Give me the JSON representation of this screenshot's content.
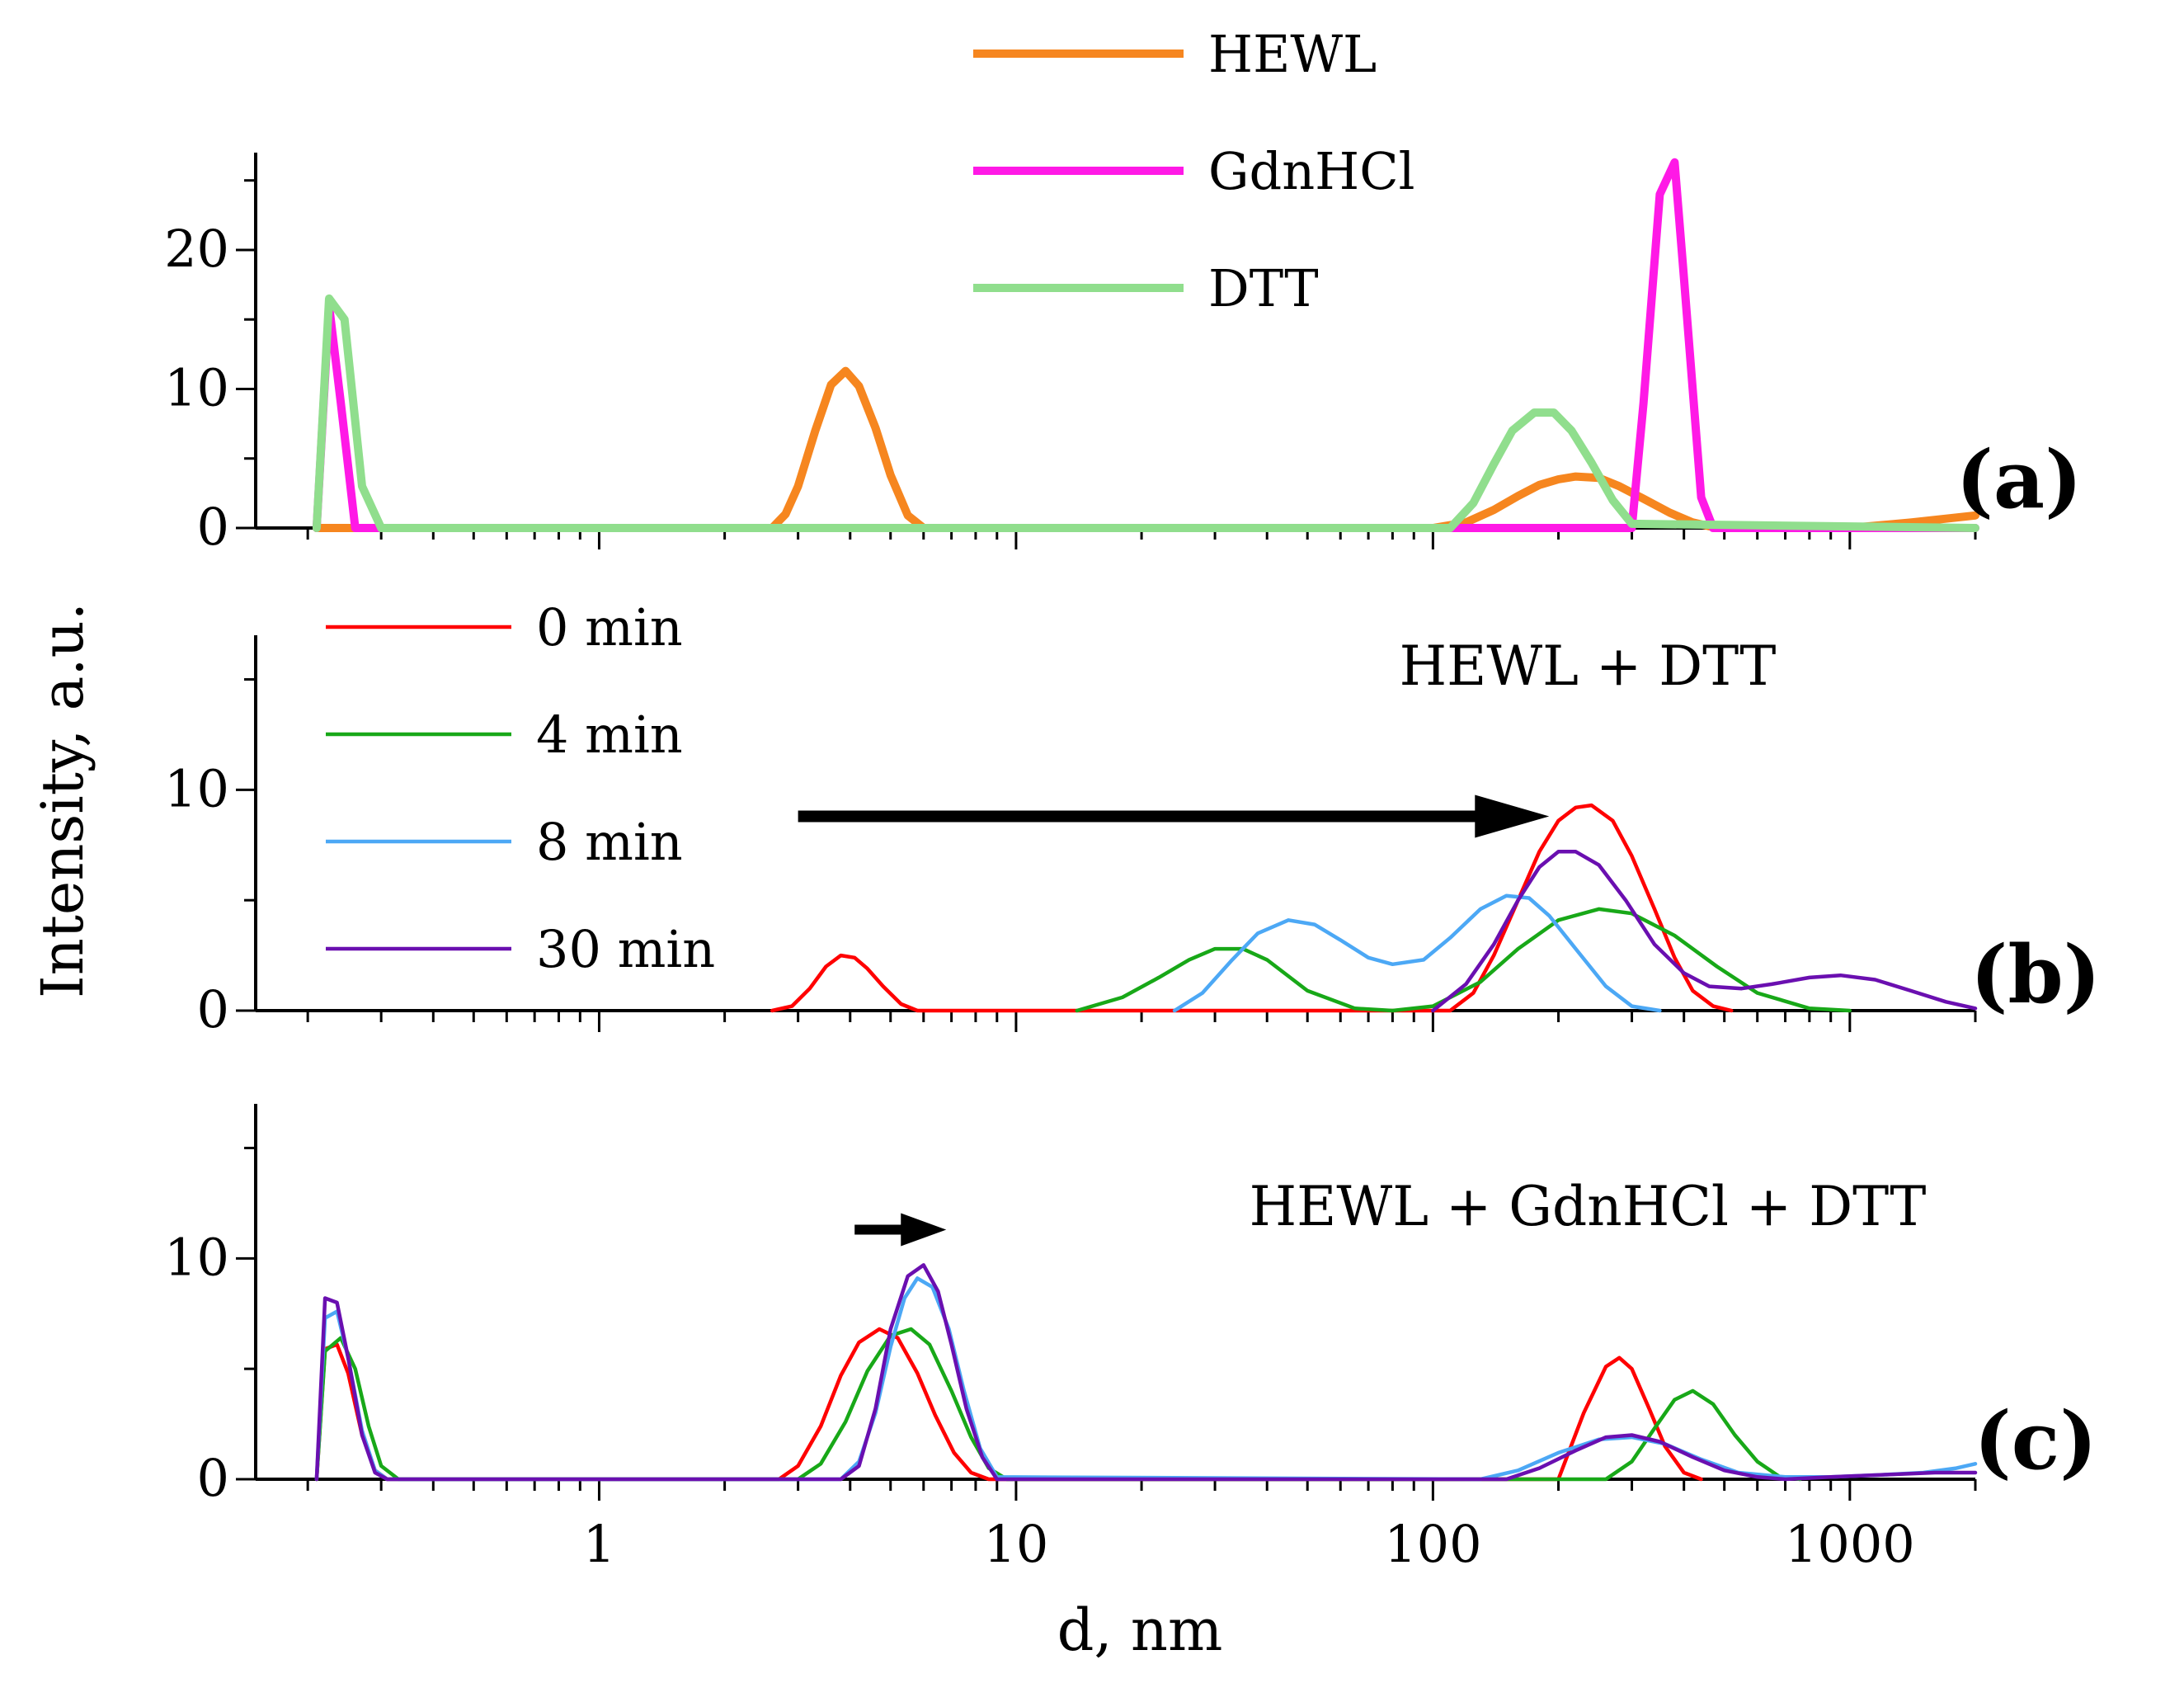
{
  "figure": {
    "xlabel": "d, nm",
    "ylabel": "Intensity, a.u.",
    "x_ticks": [
      {
        "value": 1,
        "label": "1"
      },
      {
        "value": 10,
        "label": "10"
      },
      {
        "value": 100,
        "label": "100"
      },
      {
        "value": 1000,
        "label": "1000"
      }
    ]
  },
  "chart_data": [
    {
      "panel": "a",
      "type": "line",
      "panel_label": "(a)",
      "annotation": "",
      "xscale": "log",
      "xlim": [
        0.15,
        2000
      ],
      "ylim": [
        0,
        27
      ],
      "y_ticks": [
        {
          "value": 0,
          "label": "0"
        },
        {
          "value": 10,
          "label": "10"
        },
        {
          "value": 20,
          "label": "20"
        }
      ],
      "line_width": "thick",
      "legend": {
        "placement": "top-center",
        "entries": [
          "HEWL",
          "GdnHCl",
          "DTT"
        ]
      },
      "arrow": null,
      "series": [
        {
          "name": "HEWL",
          "color": "#f6861f",
          "x": [
            0.21,
            0.26,
            2.6,
            2.8,
            3.0,
            3.3,
            3.6,
            3.9,
            4.2,
            4.6,
            5.0,
            5.5,
            6.0,
            100,
            120,
            140,
            160,
            180,
            200,
            220,
            250,
            280,
            320,
            370,
            420,
            480,
            600,
            1000,
            1400,
            2000
          ],
          "y": [
            0,
            0,
            0,
            1.0,
            3.0,
            7.0,
            10.3,
            11.3,
            10.2,
            7.2,
            3.8,
            0.9,
            0,
            0,
            0.4,
            1.3,
            2.3,
            3.1,
            3.5,
            3.7,
            3.6,
            3.0,
            2.1,
            1.1,
            0.4,
            0,
            0,
            0,
            0.4,
            0.9
          ]
        },
        {
          "name": "GdnHCl",
          "color": "#ff19e6",
          "x": [
            0.21,
            0.225,
            0.24,
            0.26,
            300,
            320,
            350,
            380,
            400,
            440,
            470,
            2000
          ],
          "y": [
            0,
            16.0,
            9.0,
            0,
            0,
            9.0,
            24.0,
            26.3,
            18.0,
            2.2,
            0,
            0
          ]
        },
        {
          "name": "DTT",
          "color": "#90de8d",
          "x": [
            0.21,
            0.225,
            0.245,
            0.27,
            0.3,
            110,
            125,
            140,
            155,
            175,
            195,
            215,
            240,
            270,
            300,
            2000
          ],
          "y": [
            0,
            16.5,
            15.0,
            3.0,
            0,
            0,
            1.8,
            4.6,
            7.0,
            8.3,
            8.3,
            7.0,
            4.7,
            2.0,
            0.3,
            0
          ]
        }
      ]
    },
    {
      "panel": "b",
      "type": "line",
      "panel_label": "(b)",
      "annotation": "HEWL + DTT",
      "xscale": "log",
      "xlim": [
        0.15,
        2000
      ],
      "ylim": [
        0,
        17
      ],
      "y_ticks": [
        {
          "value": 0,
          "label": "0"
        },
        {
          "value": 10,
          "label": "10"
        }
      ],
      "line_width": "thin",
      "legend": {
        "placement": "top-left",
        "entries": [
          "0 min",
          "4 min",
          "8 min",
          "30 min"
        ]
      },
      "arrow": {
        "from": 3.0,
        "to": 190,
        "y": 8.8,
        "size": "large"
      },
      "series": [
        {
          "name": "0 min",
          "color": "#ff0000",
          "x": [
            2.6,
            2.9,
            3.2,
            3.5,
            3.8,
            4.1,
            4.4,
            4.8,
            5.3,
            5.8,
            110,
            125,
            140,
            160,
            180,
            200,
            220,
            240,
            270,
            300,
            340,
            380,
            420,
            470,
            520
          ],
          "y": [
            0,
            0.2,
            1.0,
            2.0,
            2.5,
            2.4,
            1.9,
            1.1,
            0.3,
            0,
            0,
            0.8,
            2.5,
            5.0,
            7.2,
            8.6,
            9.2,
            9.3,
            8.6,
            7.0,
            4.6,
            2.4,
            0.9,
            0.2,
            0
          ]
        },
        {
          "name": "4 min",
          "color": "#18a818",
          "x": [
            14,
            18,
            22,
            26,
            30,
            35,
            40,
            50,
            65,
            80,
            100,
            130,
            160,
            200,
            250,
            300,
            380,
            480,
            600,
            800,
            1000
          ],
          "y": [
            0,
            0.6,
            1.5,
            2.3,
            2.8,
            2.8,
            2.3,
            0.9,
            0.1,
            0,
            0.2,
            1.3,
            2.8,
            4.1,
            4.6,
            4.4,
            3.4,
            2.0,
            0.8,
            0.1,
            0
          ]
        },
        {
          "name": "8 min",
          "color": "#4ca8f5",
          "x": [
            24,
            28,
            33,
            38,
            45,
            52,
            60,
            70,
            80,
            95,
            110,
            130,
            150,
            170,
            190,
            220,
            260,
            300,
            350
          ],
          "y": [
            0,
            0.8,
            2.3,
            3.5,
            4.1,
            3.9,
            3.2,
            2.4,
            2.1,
            2.3,
            3.3,
            4.6,
            5.2,
            5.1,
            4.3,
            2.8,
            1.1,
            0.2,
            0
          ]
        },
        {
          "name": "30 min",
          "color": "#6a0fb0",
          "x": [
            100,
            120,
            140,
            160,
            180,
            200,
            220,
            250,
            290,
            340,
            400,
            460,
            550,
            650,
            800,
            950,
            1150,
            1400,
            1700,
            2000
          ],
          "y": [
            0,
            1.2,
            3.0,
            5.0,
            6.5,
            7.2,
            7.2,
            6.6,
            5.0,
            3.0,
            1.7,
            1.1,
            1.0,
            1.2,
            1.5,
            1.6,
            1.4,
            0.9,
            0.4,
            0.1
          ]
        }
      ]
    },
    {
      "panel": "c",
      "type": "line",
      "panel_label": "(c)",
      "annotation": "HEWL + GdnHCl + DTT",
      "xscale": "log",
      "xlim": [
        0.15,
        2000
      ],
      "ylim": [
        0,
        17
      ],
      "y_ticks": [
        {
          "value": 0,
          "label": "0"
        },
        {
          "value": 10,
          "label": "10"
        }
      ],
      "line_width": "thin",
      "legend": null,
      "arrow": {
        "from": 4.1,
        "to": 6.8,
        "y": 11.3,
        "size": "small"
      },
      "series": [
        {
          "name": "0 min",
          "color": "#ff0000",
          "x": [
            0.21,
            0.22,
            0.235,
            0.25,
            0.27,
            0.29,
            0.31,
            2.7,
            3.0,
            3.4,
            3.8,
            4.2,
            4.7,
            5.2,
            5.8,
            6.4,
            7.1,
            7.8,
            8.6,
            200,
            230,
            260,
            280,
            300,
            330,
            360,
            400,
            440
          ],
          "y": [
            0,
            5.9,
            6.1,
            4.8,
            2.0,
            0.4,
            0,
            0,
            0.6,
            2.4,
            4.7,
            6.2,
            6.8,
            6.4,
            4.8,
            2.9,
            1.2,
            0.3,
            0,
            0,
            3.0,
            5.1,
            5.5,
            5.0,
            3.2,
            1.5,
            0.3,
            0
          ]
        },
        {
          "name": "4 min",
          "color": "#18a818",
          "x": [
            0.21,
            0.22,
            0.24,
            0.26,
            0.28,
            0.3,
            0.33,
            3.0,
            3.4,
            3.9,
            4.4,
            5.0,
            5.6,
            6.2,
            7.0,
            7.8,
            8.6,
            9.5,
            260,
            300,
            340,
            380,
            420,
            470,
            530,
            600,
            680,
            760
          ],
          "y": [
            0,
            5.8,
            6.4,
            5.0,
            2.4,
            0.6,
            0,
            0,
            0.7,
            2.6,
            4.9,
            6.5,
            6.8,
            6.1,
            4.0,
            1.9,
            0.5,
            0,
            0,
            0.8,
            2.3,
            3.6,
            4.0,
            3.4,
            2.0,
            0.8,
            0.1,
            0
          ]
        },
        {
          "name": "8 min",
          "color": "#4ca8f5",
          "x": [
            0.21,
            0.22,
            0.235,
            0.25,
            0.27,
            0.29,
            0.31,
            3.8,
            4.2,
            4.6,
            5.0,
            5.4,
            5.8,
            6.3,
            6.9,
            7.5,
            8.2,
            9.0,
            130,
            160,
            200,
            250,
            300,
            360,
            440,
            540,
            700,
            900,
            1200,
            1500,
            1800,
            2000
          ],
          "y": [
            0,
            7.3,
            7.6,
            5.5,
            2.2,
            0.4,
            0,
            0,
            0.8,
            3.0,
            6.0,
            8.2,
            9.1,
            8.7,
            6.8,
            4.0,
            1.4,
            0.1,
            0,
            0.4,
            1.2,
            1.8,
            1.9,
            1.6,
            0.9,
            0.3,
            0.1,
            0.1,
            0.2,
            0.3,
            0.5,
            0.7
          ]
        },
        {
          "name": "30 min",
          "color": "#6a0fb0",
          "x": [
            0.21,
            0.22,
            0.235,
            0.25,
            0.27,
            0.29,
            0.31,
            3.8,
            4.2,
            4.6,
            5.0,
            5.5,
            6.0,
            6.5,
            7.0,
            7.6,
            8.3,
            9.0,
            150,
            180,
            220,
            260,
            300,
            350,
            420,
            500,
            600,
            700,
            900,
            1200,
            1600,
            2000
          ],
          "y": [
            0,
            8.2,
            8.0,
            5.5,
            2.0,
            0.3,
            0,
            0,
            0.6,
            3.2,
            6.8,
            9.2,
            9.7,
            8.5,
            6.1,
            3.2,
            1.0,
            0,
            0,
            0.5,
            1.3,
            1.9,
            2.0,
            1.7,
            1.0,
            0.4,
            0.1,
            0,
            0.1,
            0.2,
            0.3,
            0.3
          ]
        }
      ]
    }
  ]
}
